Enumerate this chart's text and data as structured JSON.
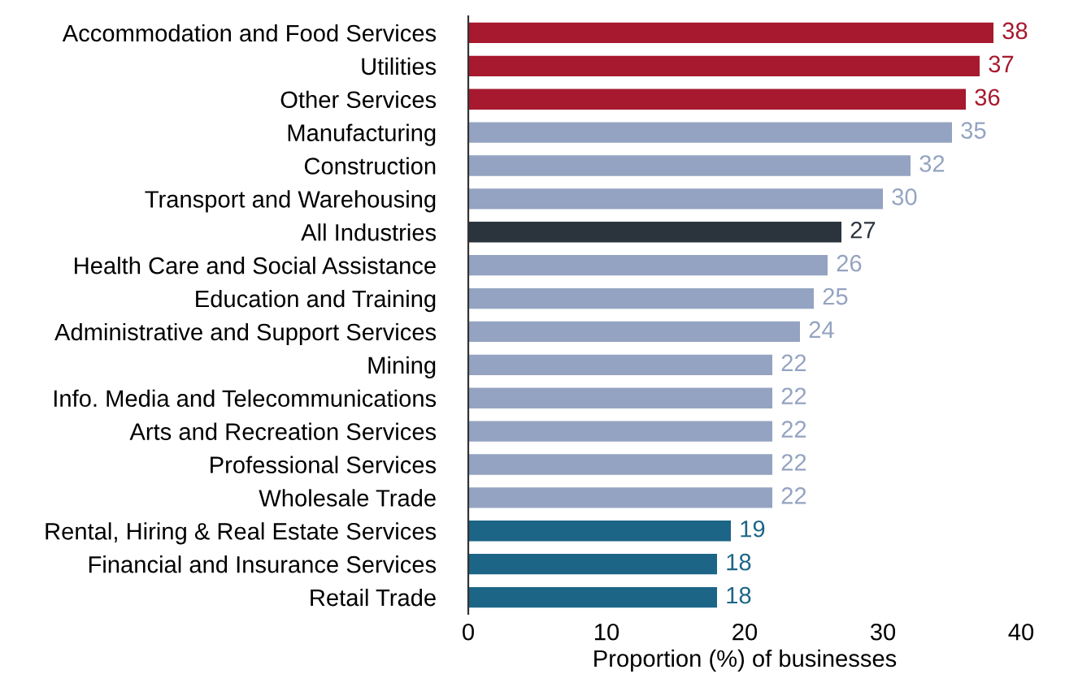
{
  "chart_data": {
    "type": "bar",
    "orientation": "horizontal",
    "xlabel": "Proportion (%) of businesses",
    "categories": [
      "Accommodation and Food Services",
      "Utilities",
      "Other Services",
      "Manufacturing",
      "Construction",
      "Transport and Warehousing",
      "All Industries",
      "Health Care and Social Assistance",
      "Education and Training",
      "Administrative and Support Services",
      "Mining",
      "Info. Media and Telecommunications",
      "Arts and Recreation Services",
      "Professional Services",
      "Wholesale Trade",
      "Rental, Hiring & Real Estate Services",
      "Financial and Insurance Services",
      "Retail Trade"
    ],
    "values": [
      38,
      37,
      36,
      35,
      32,
      30,
      27,
      26,
      25,
      24,
      22,
      22,
      22,
      22,
      22,
      19,
      18,
      18
    ],
    "colors": [
      "#a6192e",
      "#a6192e",
      "#a6192e",
      "#94a3c1",
      "#94a3c1",
      "#94a3c1",
      "#2b333d",
      "#94a3c1",
      "#94a3c1",
      "#94a3c1",
      "#94a3c1",
      "#94a3c1",
      "#94a3c1",
      "#94a3c1",
      "#94a3c1",
      "#1c6587",
      "#1c6587",
      "#1c6587"
    ],
    "xlim": [
      0,
      40
    ],
    "xticks": [
      0,
      10,
      20,
      30,
      40
    ],
    "data_labels": true,
    "grid": false,
    "legend": false
  }
}
